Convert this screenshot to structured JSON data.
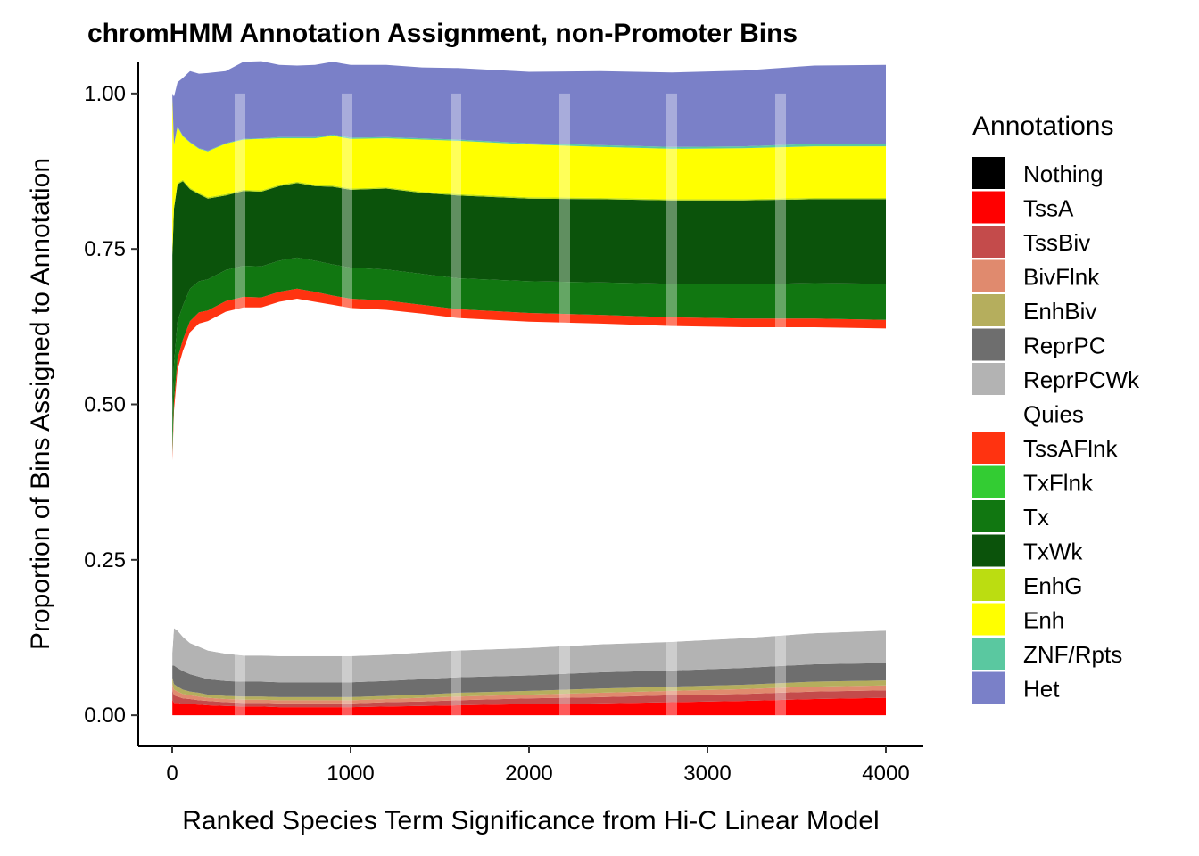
{
  "chart_data": {
    "type": "area",
    "title": "chromHMM Annotation Assignment, non-Promoter Bins",
    "xlabel": "Ranked Species Term Significance from Hi-C Linear Model",
    "ylabel": "Proportion of Bins Assigned to Annotation",
    "xlim": [
      -190,
      4210
    ],
    "ylim": [
      -0.05,
      1.05
    ],
    "x_ticks": [
      0,
      1000,
      2000,
      3000,
      4000
    ],
    "x_tick_labels": [
      "0",
      "1000",
      "2000",
      "3000",
      "4000"
    ],
    "y_ticks": [
      0,
      0.25,
      0.5,
      0.75,
      1.0
    ],
    "y_tick_labels": [
      "0.00",
      "0.25",
      "0.50",
      "0.75",
      "1.00"
    ],
    "grid": false,
    "stacked": true,
    "legend_position": "right",
    "legend_title": "Annotations",
    "vertical_bands_x": [
      380,
      980,
      1590,
      2200,
      2800,
      3410
    ],
    "x": [
      1,
      10,
      30,
      60,
      100,
      150,
      200,
      300,
      400,
      500,
      600,
      700,
      800,
      900,
      1000,
      1200,
      1400,
      1600,
      2000,
      2400,
      2800,
      3200,
      3600,
      4000
    ],
    "series": [
      {
        "name": "Nothing",
        "color": "#000000",
        "values": [
          0,
          0,
          0,
          0,
          0,
          0,
          0,
          0,
          0,
          0,
          0,
          0,
          0,
          0,
          0,
          0,
          0,
          0,
          0,
          0,
          0,
          0,
          0,
          0
        ]
      },
      {
        "name": "TssA",
        "color": "#FF0000",
        "values": [
          0.025,
          0.02,
          0.02,
          0.018,
          0.018,
          0.017,
          0.016,
          0.015,
          0.014,
          0.014,
          0.013,
          0.013,
          0.013,
          0.013,
          0.013,
          0.014,
          0.015,
          0.016,
          0.018,
          0.019,
          0.021,
          0.023,
          0.026,
          0.028
        ]
      },
      {
        "name": "TssBiv",
        "color": "#C44B4B",
        "values": [
          0.015,
          0.012,
          0.01,
          0.009,
          0.008,
          0.007,
          0.007,
          0.006,
          0.006,
          0.006,
          0.006,
          0.006,
          0.006,
          0.006,
          0.006,
          0.007,
          0.007,
          0.008,
          0.009,
          0.01,
          0.011,
          0.011,
          0.012,
          0.012
        ]
      },
      {
        "name": "BivFlnk",
        "color": "#E08A6E",
        "values": [
          0.01,
          0.009,
          0.008,
          0.007,
          0.006,
          0.006,
          0.005,
          0.005,
          0.005,
          0.005,
          0.005,
          0.005,
          0.005,
          0.005,
          0.005,
          0.005,
          0.006,
          0.006,
          0.006,
          0.007,
          0.007,
          0.008,
          0.008,
          0.008
        ]
      },
      {
        "name": "EnhBiv",
        "color": "#B5AE5D",
        "values": [
          0.01,
          0.009,
          0.008,
          0.007,
          0.006,
          0.006,
          0.005,
          0.005,
          0.005,
          0.005,
          0.005,
          0.005,
          0.005,
          0.005,
          0.005,
          0.005,
          0.005,
          0.006,
          0.006,
          0.007,
          0.007,
          0.007,
          0.008,
          0.008
        ]
      },
      {
        "name": "ReprPC",
        "color": "#6E6E6E",
        "values": [
          0.02,
          0.03,
          0.03,
          0.03,
          0.028,
          0.026,
          0.025,
          0.024,
          0.024,
          0.024,
          0.024,
          0.024,
          0.024,
          0.024,
          0.024,
          0.024,
          0.025,
          0.025,
          0.025,
          0.026,
          0.026,
          0.027,
          0.028,
          0.028
        ]
      },
      {
        "name": "ReprPCWk",
        "color": "#B3B3B3",
        "values": [
          0.02,
          0.06,
          0.06,
          0.055,
          0.05,
          0.048,
          0.046,
          0.044,
          0.042,
          0.042,
          0.042,
          0.042,
          0.042,
          0.042,
          0.042,
          0.042,
          0.043,
          0.043,
          0.044,
          0.045,
          0.046,
          0.048,
          0.05,
          0.052
        ]
      },
      {
        "name": "Quies",
        "color": "#FFFFFF",
        "values": [
          0.31,
          0.35,
          0.42,
          0.46,
          0.5,
          0.52,
          0.53,
          0.55,
          0.56,
          0.56,
          0.57,
          0.575,
          0.57,
          0.565,
          0.56,
          0.555,
          0.545,
          0.535,
          0.525,
          0.516,
          0.508,
          0.5,
          0.492,
          0.486
        ]
      },
      {
        "name": "TssAFlnk",
        "color": "#FF3310",
        "values": [
          0.01,
          0.015,
          0.018,
          0.018,
          0.018,
          0.018,
          0.017,
          0.017,
          0.017,
          0.016,
          0.016,
          0.016,
          0.016,
          0.015,
          0.015,
          0.015,
          0.014,
          0.014,
          0.014,
          0.014,
          0.014,
          0.014,
          0.014,
          0.014
        ]
      },
      {
        "name": "TxFlnk",
        "color": "#33CC33",
        "values": [
          0,
          0,
          0,
          0,
          0,
          0,
          0,
          0,
          0,
          0,
          0,
          0,
          0,
          0,
          0,
          0,
          0,
          0,
          0,
          0,
          0,
          0,
          0,
          0
        ]
      },
      {
        "name": "Tx",
        "color": "#117711",
        "values": [
          0.05,
          0.06,
          0.06,
          0.055,
          0.052,
          0.05,
          0.05,
          0.05,
          0.05,
          0.05,
          0.05,
          0.05,
          0.05,
          0.05,
          0.05,
          0.05,
          0.05,
          0.05,
          0.051,
          0.052,
          0.054,
          0.055,
          0.057,
          0.058
        ]
      },
      {
        "name": "TxWk",
        "color": "#0B530B",
        "values": [
          0.27,
          0.25,
          0.22,
          0.2,
          0.16,
          0.14,
          0.13,
          0.12,
          0.12,
          0.12,
          0.12,
          0.12,
          0.12,
          0.125,
          0.125,
          0.13,
          0.13,
          0.133,
          0.133,
          0.134,
          0.134,
          0.135,
          0.135,
          0.136
        ]
      },
      {
        "name": "EnhG",
        "color": "#BBDD11",
        "values": [
          0.002,
          0.002,
          0.002,
          0.002,
          0.002,
          0.002,
          0.002,
          0.002,
          0.002,
          0.002,
          0.002,
          0.002,
          0.002,
          0.002,
          0.002,
          0.002,
          0.002,
          0.002,
          0.002,
          0.002,
          0.002,
          0.002,
          0.002,
          0.002
        ]
      },
      {
        "name": "Enh",
        "color": "#FFFF00",
        "values": [
          0.25,
          0.1,
          0.09,
          0.07,
          0.073,
          0.071,
          0.074,
          0.081,
          0.081,
          0.083,
          0.075,
          0.07,
          0.075,
          0.08,
          0.08,
          0.079,
          0.084,
          0.086,
          0.085,
          0.082,
          0.081,
          0.082,
          0.083,
          0.083
        ]
      },
      {
        "name": "ZNF/Rpts",
        "color": "#5AC8A0",
        "values": [
          0.001,
          0.001,
          0.001,
          0.001,
          0.001,
          0.001,
          0.001,
          0.001,
          0.001,
          0.001,
          0.002,
          0.002,
          0.002,
          0.002,
          0.002,
          0.002,
          0.002,
          0.002,
          0.002,
          0.003,
          0.003,
          0.003,
          0.004,
          0.004
        ]
      },
      {
        "name": "Het",
        "color": "#7A80C8",
        "values": [
          0.007,
          0.077,
          0.071,
          0.093,
          0.114,
          0.12,
          0.125,
          0.116,
          0.124,
          0.124,
          0.116,
          0.115,
          0.116,
          0.117,
          0.117,
          0.116,
          0.114,
          0.115,
          0.115,
          0.119,
          0.12,
          0.122,
          0.126,
          0.127
        ]
      }
    ]
  }
}
